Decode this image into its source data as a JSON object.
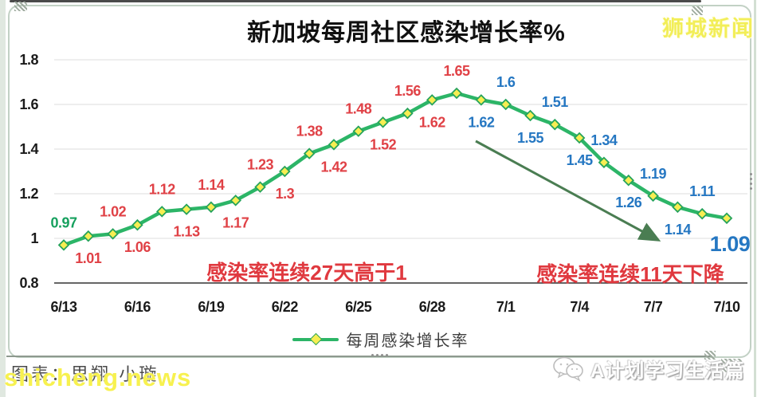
{
  "window": {
    "brand_logo": "狮城新闻",
    "watermark": "shicheng.news",
    "credit": "图表：思翔·小璇",
    "wechat_account": "A计划学习生活篇"
  },
  "chart_data": {
    "type": "line",
    "title": "新加坡每周社区感染增长率%",
    "legend": {
      "label": "每周感染增长率",
      "position": "bottom-center"
    },
    "x_tick_labels": [
      "6/13",
      "6/16",
      "6/19",
      "6/22",
      "6/25",
      "6/28",
      "7/1",
      "7/4",
      "7/7",
      "7/10"
    ],
    "x_tick_every": 3,
    "y_tick_labels": [
      "1.8",
      "1.6",
      "1.4",
      "1.2",
      "1",
      "0.8"
    ],
    "ylim": [
      0.8,
      1.8
    ],
    "grid": true,
    "series": [
      {
        "name": "每周感染增长率",
        "values": [
          0.97,
          1.01,
          1.02,
          1.06,
          1.12,
          1.13,
          1.14,
          1.17,
          1.23,
          1.3,
          1.38,
          1.42,
          1.48,
          1.52,
          1.56,
          1.62,
          1.65,
          1.62,
          1.6,
          1.55,
          1.51,
          1.45,
          1.34,
          1.26,
          1.19,
          1.14,
          1.11,
          1.09
        ]
      }
    ],
    "point_labels": [
      {
        "t": "0.97",
        "p": "a",
        "c": "green"
      },
      {
        "t": "1.01",
        "p": "b",
        "c": "red"
      },
      {
        "t": "1.02",
        "p": "a",
        "c": "red"
      },
      {
        "t": "1.06",
        "p": "b",
        "c": "red"
      },
      {
        "t": "1.12",
        "p": "a",
        "c": "red"
      },
      {
        "t": "1.13",
        "p": "b",
        "c": "red"
      },
      {
        "t": "1.14",
        "p": "a",
        "c": "red"
      },
      {
        "t": "1.17",
        "p": "b",
        "c": "red"
      },
      {
        "t": "1.23",
        "p": "a",
        "c": "red"
      },
      {
        "t": "1.3",
        "p": "b",
        "c": "red"
      },
      {
        "t": "1.38",
        "p": "a",
        "c": "red"
      },
      {
        "t": "1.42",
        "p": "b",
        "c": "red"
      },
      {
        "t": "1.48",
        "p": "a",
        "c": "red"
      },
      {
        "t": "1.52",
        "p": "b",
        "c": "red"
      },
      {
        "t": "1.56",
        "p": "a",
        "c": "red"
      },
      {
        "t": "1.62",
        "p": "b",
        "c": "red"
      },
      {
        "t": "1.65",
        "p": "a",
        "c": "red"
      },
      {
        "t": "1.62",
        "p": "b",
        "c": "blue"
      },
      {
        "t": "1.6",
        "p": "a",
        "c": "blue"
      },
      {
        "t": "1.55",
        "p": "b",
        "c": "blue"
      },
      {
        "t": "1.51",
        "p": "a",
        "c": "blue"
      },
      {
        "t": "1.45",
        "p": "b",
        "c": "blue"
      },
      {
        "t": "1.34",
        "p": "a",
        "c": "blue"
      },
      {
        "t": "1.26",
        "p": "b",
        "c": "blue"
      },
      {
        "t": "1.19",
        "p": "a",
        "c": "blue"
      },
      {
        "t": "1.14",
        "p": "b",
        "c": "blue"
      },
      {
        "t": "1.11",
        "p": "a",
        "c": "blue"
      },
      {
        "t": "1.09",
        "p": "b",
        "c": "blue",
        "big": true
      }
    ],
    "annotations": {
      "rising": "感染率连续27天高于1",
      "falling": "感染率连续11天下降",
      "arrow": true
    },
    "colors": {
      "line": "#2cb567",
      "marker_fill": "#f7ee52",
      "marker_stroke": "#26a35b",
      "label_red": "#e04146",
      "label_blue": "#2577c2",
      "label_green": "#16a05e",
      "annotation_red": "#e0393f",
      "arrow": "#4a7d52",
      "axis": "#333333",
      "grid": "#e9e9e9",
      "tick_text": "#1a1a1a"
    }
  }
}
